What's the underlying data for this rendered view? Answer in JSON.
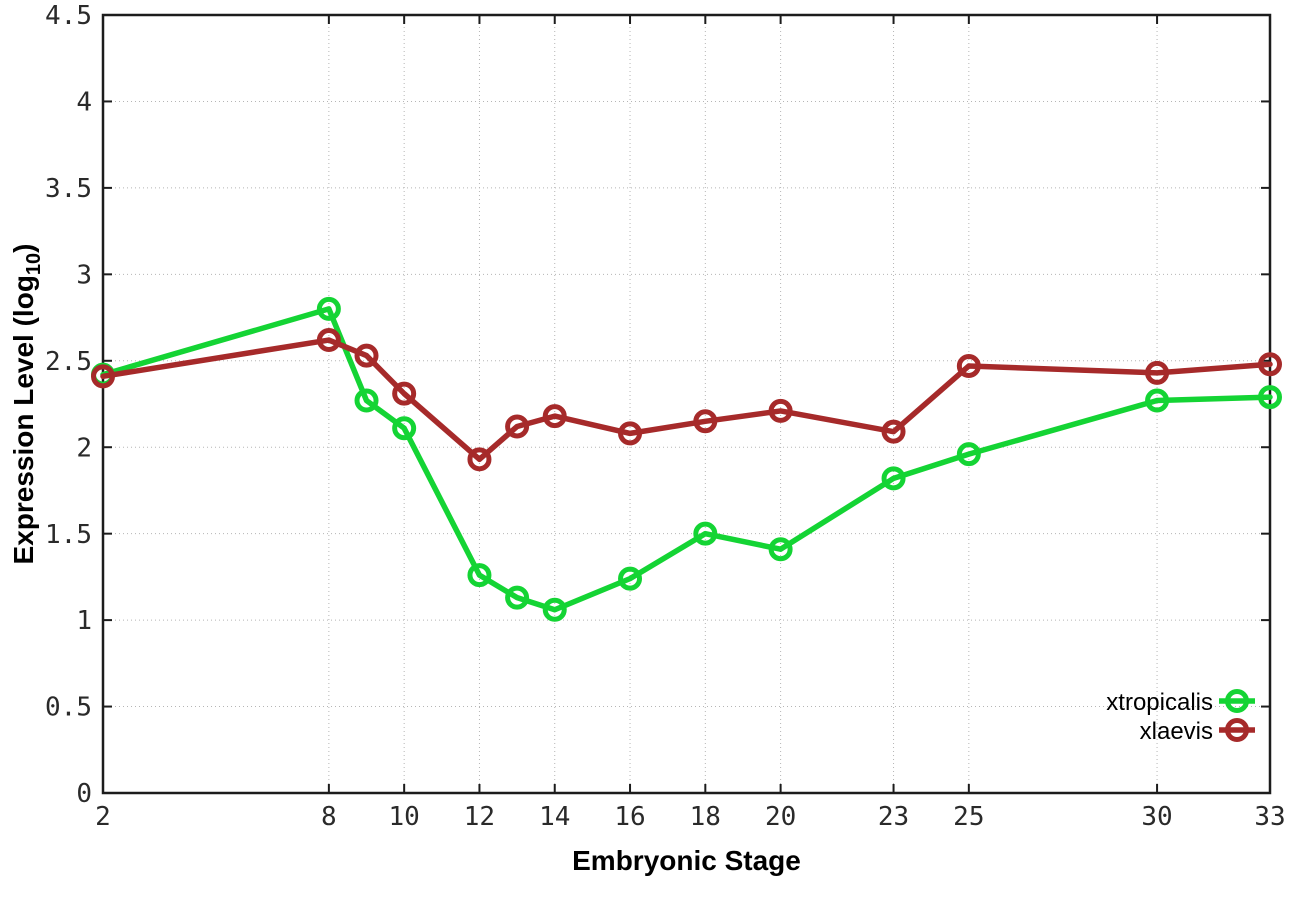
{
  "chart_data": {
    "type": "line",
    "title": "",
    "xlabel": "Embryonic Stage",
    "ylabel": "Expression Level (log10)",
    "ylabel_parts": {
      "main": "Expression Level (log",
      "sub": "10",
      "end": ")"
    },
    "xlim": [
      2,
      33
    ],
    "ylim": [
      0,
      4.5
    ],
    "grid": true,
    "legend_position": "bottom-right",
    "x_ticks": [
      2,
      8,
      10,
      12,
      14,
      16,
      18,
      20,
      23,
      25,
      30,
      33
    ],
    "x_tick_labels": [
      "2",
      "8",
      "10",
      "12",
      "14",
      "16",
      "18",
      "20",
      "23",
      "25",
      "30",
      "33"
    ],
    "y_ticks": [
      0,
      0.5,
      1,
      1.5,
      2,
      2.5,
      3,
      3.5,
      4,
      4.5
    ],
    "y_tick_labels": [
      "0",
      "0.5",
      "1",
      "1.5",
      "2",
      "2.5",
      "3",
      "3.5",
      "4",
      "4.5"
    ],
    "x": [
      2,
      8,
      9,
      10,
      12,
      13,
      14,
      16,
      18,
      20,
      23,
      25,
      30,
      33
    ],
    "series": [
      {
        "name": "xtropicalis",
        "color": "#14d434",
        "values": [
          2.42,
          2.8,
          2.27,
          2.11,
          1.26,
          1.13,
          1.06,
          1.24,
          1.5,
          1.41,
          1.82,
          1.96,
          2.27,
          2.29
        ]
      },
      {
        "name": "xlaevis",
        "color": "#a62a2a",
        "values": [
          2.41,
          2.62,
          2.53,
          2.31,
          1.93,
          2.12,
          2.18,
          2.08,
          2.15,
          2.21,
          2.09,
          2.47,
          2.43,
          2.48
        ]
      }
    ],
    "colors": {
      "grid": "#b5b5b5",
      "axis": "#1c1c1c",
      "tick_text": "#2a2a2a",
      "background": "#ffffff"
    }
  }
}
